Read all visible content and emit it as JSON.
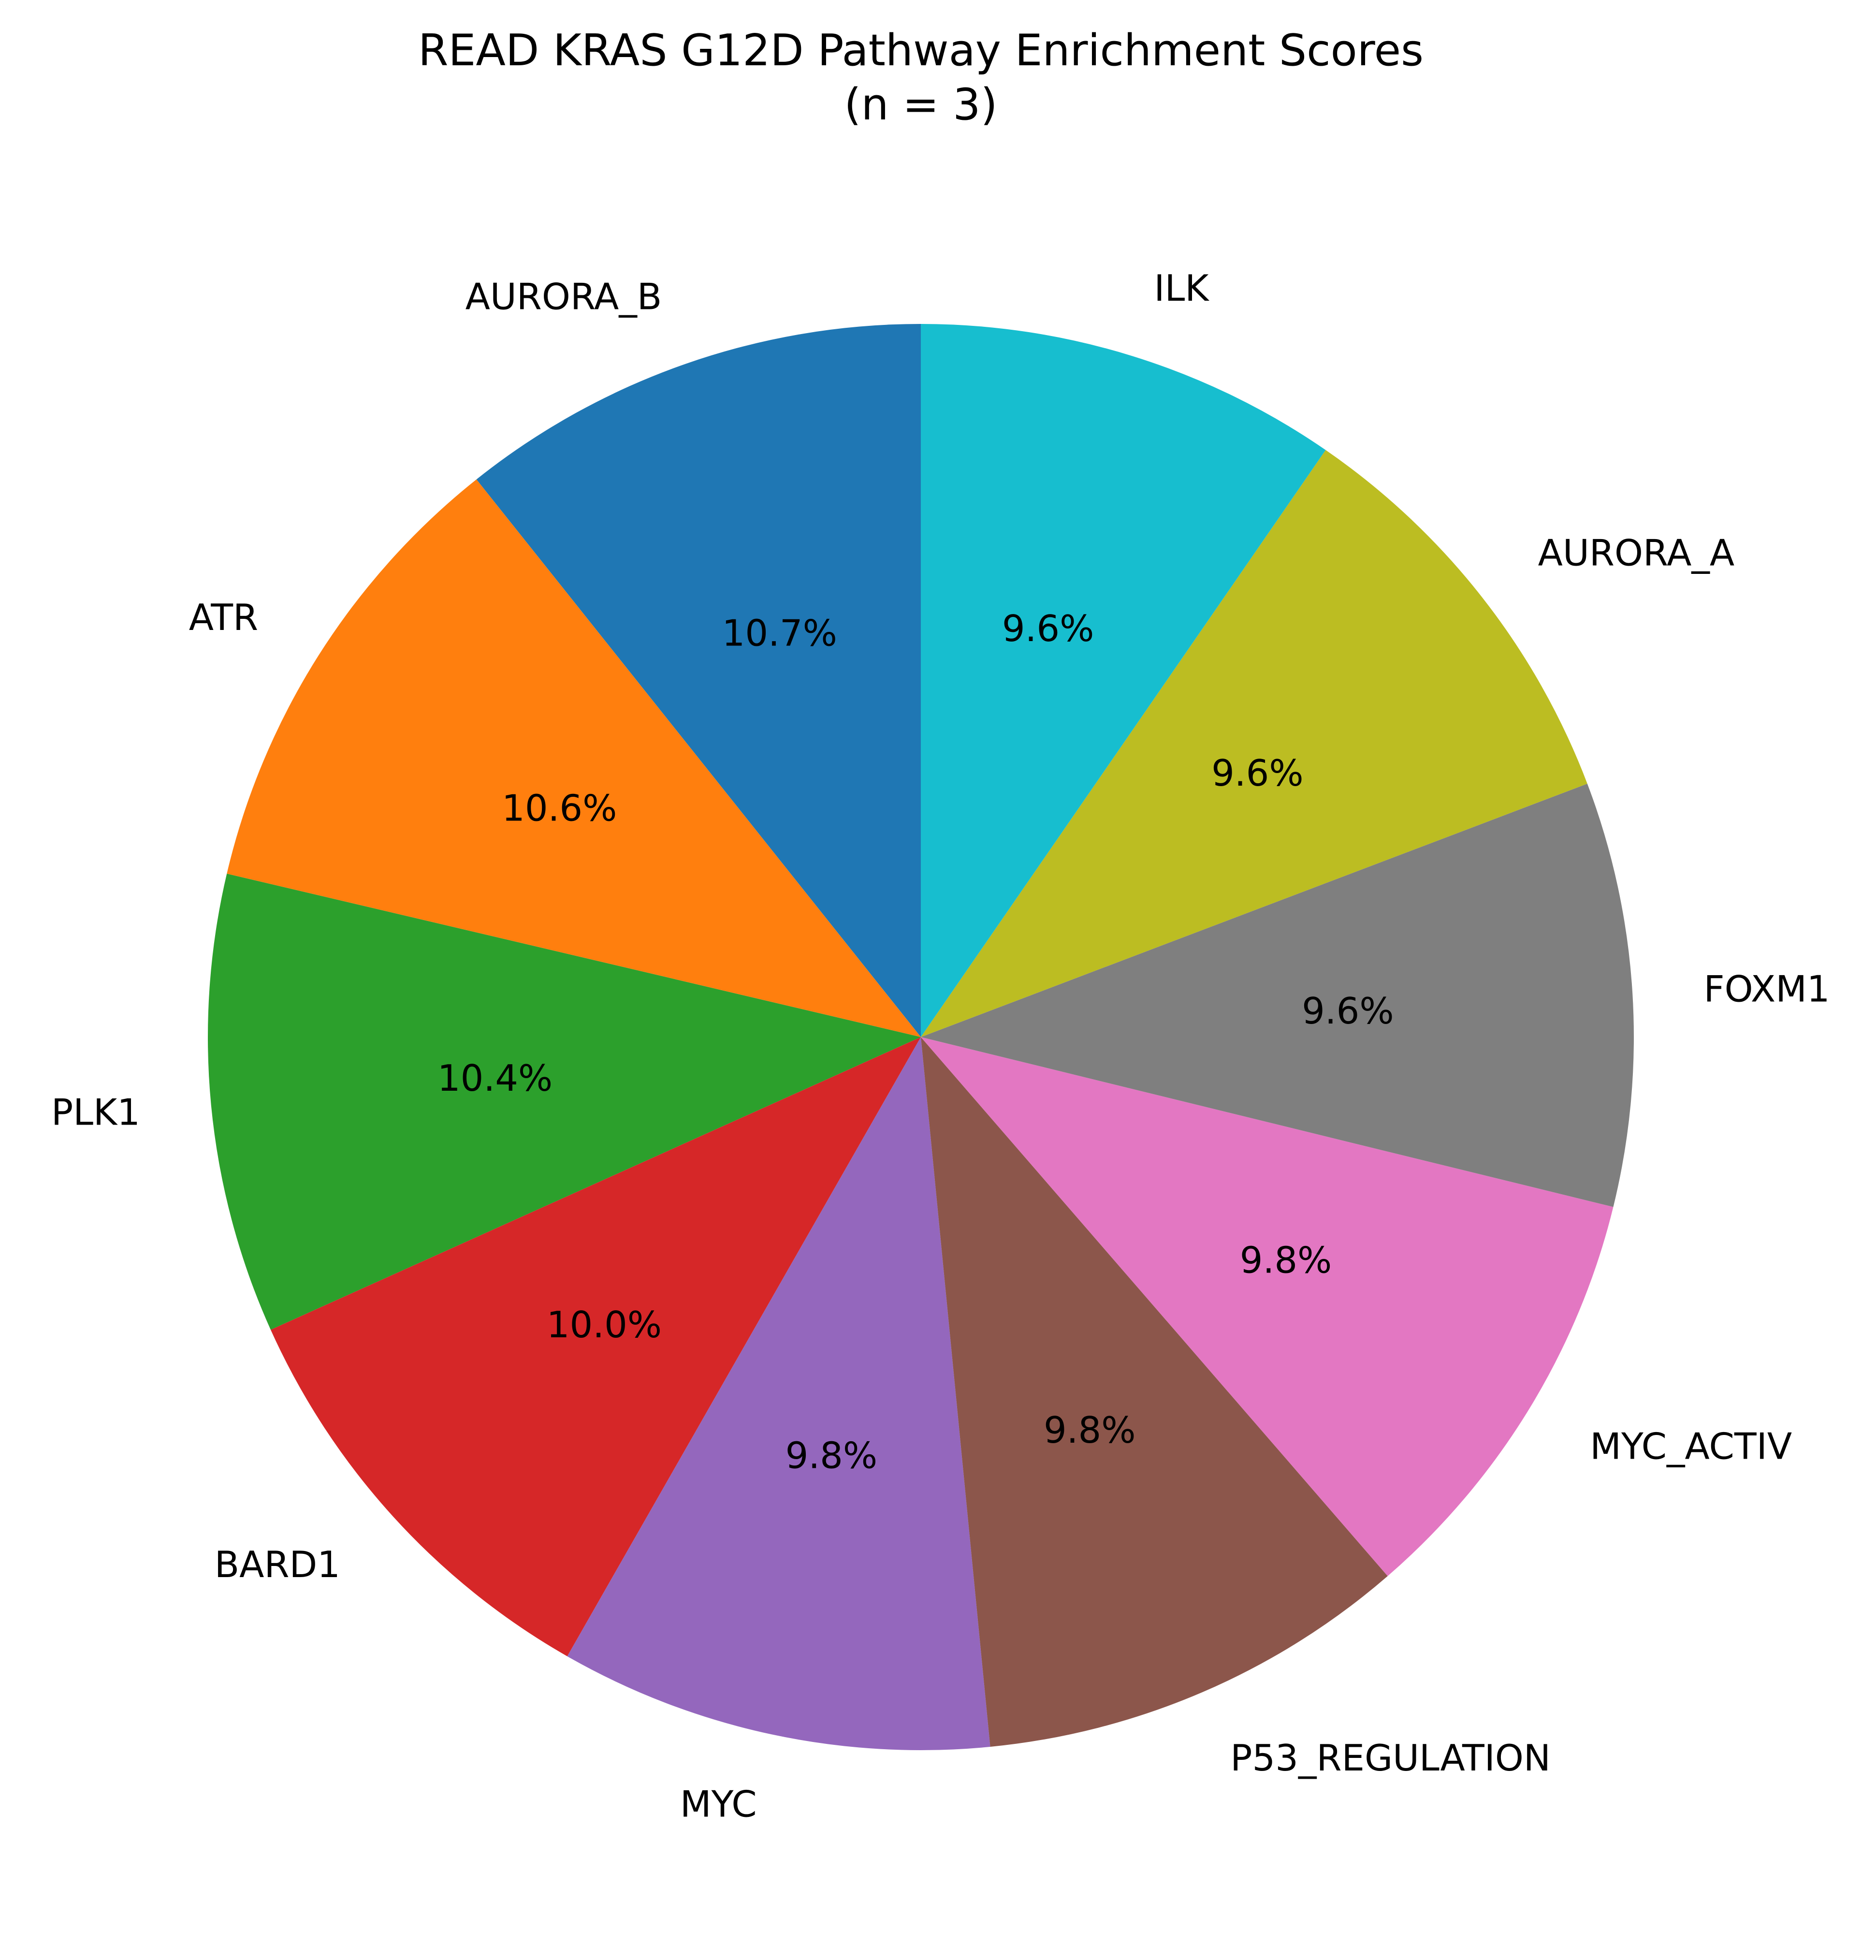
{
  "chart_data": {
    "type": "pie",
    "title": "READ KRAS G12D Pathway Enrichment Scores",
    "subtitle": "(n = 3)",
    "start_angle": "top",
    "direction": "counterclockwise",
    "slices": [
      {
        "label": "AURORA_B",
        "value": 10.7,
        "pct_label": "10.7%",
        "color": "#1f77b4"
      },
      {
        "label": "ATR",
        "value": 10.6,
        "pct_label": "10.6%",
        "color": "#ff7f0e"
      },
      {
        "label": "PLK1",
        "value": 10.4,
        "pct_label": "10.4%",
        "color": "#2ca02c"
      },
      {
        "label": "BARD1",
        "value": 10.0,
        "pct_label": "10.0%",
        "color": "#d62728"
      },
      {
        "label": "MYC",
        "value": 9.8,
        "pct_label": "9.8%",
        "color": "#9467bd"
      },
      {
        "label": "P53_REGULATION",
        "value": 9.8,
        "pct_label": "9.8%",
        "color": "#8c564b"
      },
      {
        "label": "MYC_ACTIV",
        "value": 9.8,
        "pct_label": "9.8%",
        "color": "#e377c2"
      },
      {
        "label": "FOXM1",
        "value": 9.6,
        "pct_label": "9.6%",
        "color": "#7f7f7f"
      },
      {
        "label": "AURORA_A",
        "value": 9.6,
        "pct_label": "9.6%",
        "color": "#bcbd22"
      },
      {
        "label": "ILK",
        "value": 9.6,
        "pct_label": "9.6%",
        "color": "#17becf"
      }
    ]
  }
}
